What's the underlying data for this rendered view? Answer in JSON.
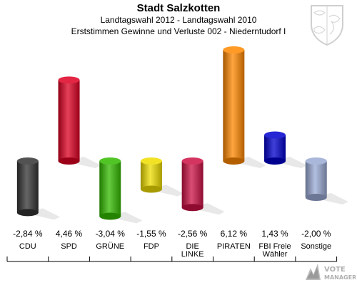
{
  "header": {
    "title": "Stadt Salzkotten",
    "subtitle": "Landtagswahl 2012 - Landtagswahl 2010",
    "description": "Erststimmen Gewinne und Verluste 002 - Niederntudorf I"
  },
  "logo": {
    "line1": "VOTE",
    "line2": "MANAGER"
  },
  "chart_data": {
    "type": "bar",
    "categories": [
      "CDU",
      "SPD",
      "GRÜNE",
      "FDP",
      "DIE LINKE",
      "PIRATEN",
      "FBI Freie Wähler",
      "Sonstige"
    ],
    "category_lines": [
      [
        "CDU"
      ],
      [
        "SPD"
      ],
      [
        "GRÜNE"
      ],
      [
        "FDP"
      ],
      [
        "DIE",
        "LINKE"
      ],
      [
        "PIRATEN"
      ],
      [
        "FBI Freie",
        "Wähler"
      ],
      [
        "Sonstige"
      ]
    ],
    "values": [
      -2.84,
      4.46,
      -3.04,
      -1.55,
      -2.56,
      6.12,
      1.43,
      -2.0
    ],
    "value_labels": [
      "-2,84 %",
      "4,46 %",
      "-3,04 %",
      "-1,55 %",
      "-2,56 %",
      "6,12 %",
      "1,43 %",
      "-2,00 %"
    ],
    "colors": [
      "#333333",
      "#dd0022",
      "#33bb00",
      "#eedd00",
      "#cc1144",
      "#ff8800",
      "#0000cc",
      "#99aad4"
    ],
    "ylim": [
      -3.04,
      6.12
    ],
    "grid": false,
    "legend": "none"
  }
}
